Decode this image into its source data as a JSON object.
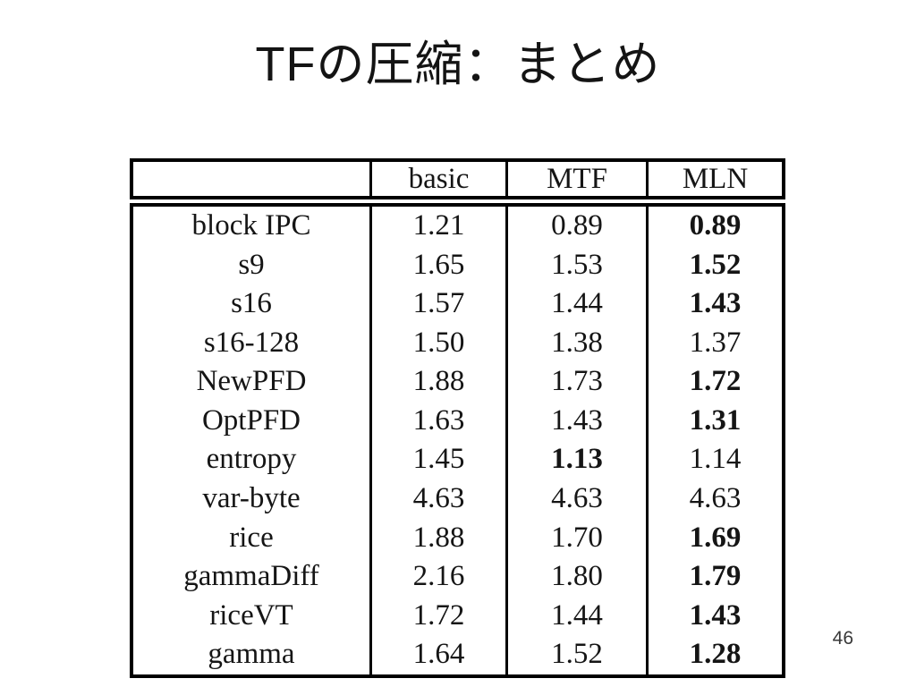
{
  "slide": {
    "title": "TFの圧縮：まとめ",
    "page_number": "46"
  },
  "table": {
    "columns": [
      "",
      "basic",
      "MTF",
      "MLN"
    ],
    "rows": [
      {
        "cells": [
          "block IPC",
          "1.21",
          "0.89",
          "0.89"
        ],
        "bold_cols": [
          3
        ]
      },
      {
        "cells": [
          "s9",
          "1.65",
          "1.53",
          "1.52"
        ],
        "bold_cols": [
          3
        ]
      },
      {
        "cells": [
          "s16",
          "1.57",
          "1.44",
          "1.43"
        ],
        "bold_cols": [
          3
        ]
      },
      {
        "cells": [
          "s16-128",
          "1.50",
          "1.38",
          "1.37"
        ],
        "bold_cols": []
      },
      {
        "cells": [
          "NewPFD",
          "1.88",
          "1.73",
          "1.72"
        ],
        "bold_cols": [
          3
        ]
      },
      {
        "cells": [
          "OptPFD",
          "1.63",
          "1.43",
          "1.31"
        ],
        "bold_cols": [
          3
        ]
      },
      {
        "cells": [
          "entropy",
          "1.45",
          "1.13",
          "1.14"
        ],
        "bold_cols": [
          2
        ]
      },
      {
        "cells": [
          "var-byte",
          "4.63",
          "4.63",
          "4.63"
        ],
        "bold_cols": []
      },
      {
        "cells": [
          "rice",
          "1.88",
          "1.70",
          "1.69"
        ],
        "bold_cols": [
          3
        ]
      },
      {
        "cells": [
          "gammaDiff",
          "2.16",
          "1.80",
          "1.79"
        ],
        "bold_cols": [
          3
        ]
      },
      {
        "cells": [
          "riceVT",
          "1.72",
          "1.44",
          "1.43"
        ],
        "bold_cols": [
          3
        ]
      },
      {
        "cells": [
          "gamma",
          "1.64",
          "1.52",
          "1.28"
        ],
        "bold_cols": [
          3
        ]
      }
    ]
  }
}
